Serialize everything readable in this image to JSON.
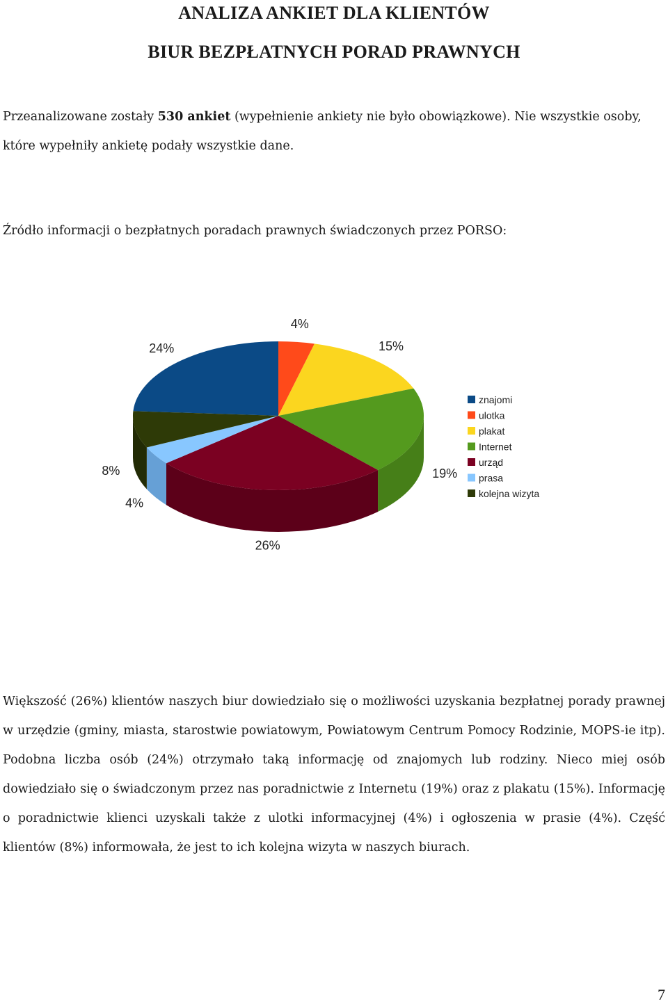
{
  "document": {
    "title_line1": "ANALIZA ANKIET DLA KLIENTÓW",
    "title_line2": "BIUR BEZPŁATNYCH PORAD PRAWNYCH",
    "intro_before": "Przeanalizowane zostały ",
    "intro_bold": "530 ankiet",
    "intro_after": " (wypełnienie ankiety nie było obowiązkowe). Nie wszystkie osoby, które wypełniły ankietę podały wszystkie dane.",
    "section_heading": "Źródło informacji o bezpłatnych poradach prawnych świadczonych przez PORSO:",
    "summary": "Większość (26%) klientów naszych biur dowiedziało się o możliwości uzyskania bezpłatnej porady prawnej w urzędzie (gminy, miasta, starostwie powiatowym, Powiatowym Centrum Pomocy Rodzinie, MOPS-ie itp). Podobna liczba osób (24%) otrzymało taką informację od znajomych lub rodziny. Nieco miej osób dowiedziało się o świadczonym przez nas poradnictwie z Internetu (19%) oraz z plakatu (15%). Informację o poradnictwie klienci uzyskali także z ulotki informacyjnej (4%) i ogłoszenia w prasie (4%). Część klientów (8%) informowała, że jest to ich kolejna wizyta w naszych biurach.",
    "page_number": "7"
  },
  "chart_data": {
    "type": "pie",
    "style": "3d",
    "unit": "%",
    "legend_position": "right",
    "series": [
      {
        "name": "znajomi",
        "value": 24,
        "label": "24%",
        "color": "#0b4a86",
        "side_color": "#083866"
      },
      {
        "name": "ulotka",
        "value": 4,
        "label": "4%",
        "color": "#ff4a1a",
        "side_color": "#c23510"
      },
      {
        "name": "plakat",
        "value": 15,
        "label": "15%",
        "color": "#fbd61f",
        "side_color": "#d4ae1c"
      },
      {
        "name": "Internet",
        "value": 19,
        "label": "19%",
        "color": "#549a1e",
        "side_color": "#467f18"
      },
      {
        "name": "urząd",
        "value": 26,
        "label": "26%",
        "color": "#7b0122",
        "side_color": "#5c0019"
      },
      {
        "name": "prasa",
        "value": 4,
        "label": "4%",
        "color": "#88c7ff",
        "side_color": "#66a0d6"
      },
      {
        "name": "kolejna wizyta",
        "value": 8,
        "label": "8%",
        "color": "#2e3a07",
        "side_color": "#222b05"
      }
    ]
  }
}
